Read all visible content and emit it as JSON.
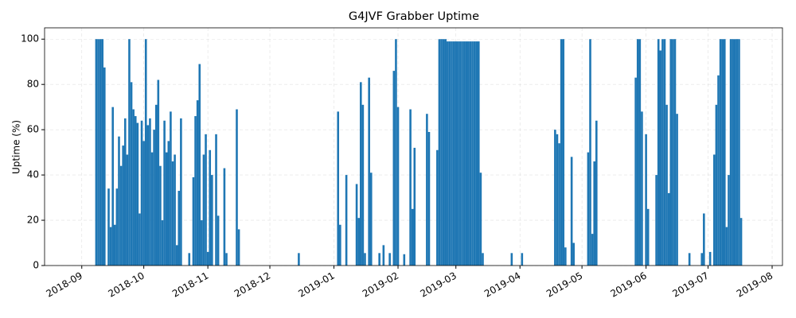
{
  "chart_data": {
    "type": "bar",
    "title": "G4JVF Grabber Uptime",
    "y_label": "Uptime (%)",
    "color": "#1f77b4",
    "grid": true,
    "x": [
      "2018-09-08",
      "2018-09-09",
      "2018-09-10",
      "2018-09-11",
      "2018-09-12",
      "2018-09-14",
      "2018-09-15",
      "2018-09-16",
      "2018-09-17",
      "2018-09-18",
      "2018-09-19",
      "2018-09-20",
      "2018-09-21",
      "2018-09-22",
      "2018-09-23",
      "2018-09-24",
      "2018-09-25",
      "2018-09-26",
      "2018-09-27",
      "2018-09-28",
      "2018-09-29",
      "2018-09-30",
      "2018-10-01",
      "2018-10-02",
      "2018-10-03",
      "2018-10-04",
      "2018-10-05",
      "2018-10-06",
      "2018-10-07",
      "2018-10-08",
      "2018-10-09",
      "2018-10-10",
      "2018-10-11",
      "2018-10-12",
      "2018-10-13",
      "2018-10-14",
      "2018-10-15",
      "2018-10-16",
      "2018-10-17",
      "2018-10-18",
      "2018-10-19",
      "2018-10-23",
      "2018-10-25",
      "2018-10-26",
      "2018-10-27",
      "2018-10-28",
      "2018-10-29",
      "2018-10-30",
      "2018-10-31",
      "2018-11-01",
      "2018-11-02",
      "2018-11-03",
      "2018-11-05",
      "2018-11-06",
      "2018-11-09",
      "2018-11-10",
      "2018-11-15",
      "2018-11-16",
      "2018-12-15",
      "2019-01-03",
      "2019-01-04",
      "2019-01-07",
      "2019-01-12",
      "2019-01-13",
      "2019-01-14",
      "2019-01-15",
      "2019-01-16",
      "2019-01-18",
      "2019-01-19",
      "2019-01-23",
      "2019-01-25",
      "2019-01-28",
      "2019-01-30",
      "2019-01-31",
      "2019-02-01",
      "2019-02-04",
      "2019-02-07",
      "2019-02-08",
      "2019-02-09",
      "2019-02-15",
      "2019-02-16",
      "2019-02-20",
      "2019-02-21",
      "2019-02-22",
      "2019-02-23",
      "2019-02-24",
      "2019-02-25",
      "2019-02-26",
      "2019-02-27",
      "2019-02-28",
      "2019-03-01",
      "2019-03-02",
      "2019-03-03",
      "2019-03-04",
      "2019-03-05",
      "2019-03-06",
      "2019-03-07",
      "2019-03-08",
      "2019-03-09",
      "2019-03-10",
      "2019-03-11",
      "2019-03-12",
      "2019-03-13",
      "2019-03-14",
      "2019-03-28",
      "2019-04-02",
      "2019-04-18",
      "2019-04-19",
      "2019-04-20",
      "2019-04-21",
      "2019-04-22",
      "2019-04-23",
      "2019-04-26",
      "2019-04-27",
      "2019-05-04",
      "2019-05-05",
      "2019-05-06",
      "2019-05-07",
      "2019-05-08",
      "2019-05-27",
      "2019-05-28",
      "2019-05-29",
      "2019-05-30",
      "2019-06-01",
      "2019-06-02",
      "2019-06-06",
      "2019-06-07",
      "2019-06-08",
      "2019-06-09",
      "2019-06-10",
      "2019-06-11",
      "2019-06-12",
      "2019-06-13",
      "2019-06-14",
      "2019-06-15",
      "2019-06-16",
      "2019-06-22",
      "2019-06-28",
      "2019-06-29",
      "2019-07-02",
      "2019-07-04",
      "2019-07-05",
      "2019-07-06",
      "2019-07-07",
      "2019-07-08",
      "2019-07-09",
      "2019-07-10",
      "2019-07-11",
      "2019-07-12",
      "2019-07-13",
      "2019-07-14",
      "2019-07-15",
      "2019-07-16",
      "2019-07-17"
    ],
    "values": [
      100,
      100,
      100,
      100,
      87.5,
      34,
      17,
      70,
      18,
      34,
      57,
      44,
      53,
      65,
      49,
      100,
      81,
      69,
      66,
      63,
      23,
      64,
      55,
      100,
      62,
      65,
      50,
      60,
      71,
      82,
      44,
      20,
      64,
      50,
      55,
      68,
      46,
      49,
      9,
      33,
      65,
      5.5,
      39,
      66,
      73,
      89,
      20,
      49,
      58,
      6,
      51,
      40,
      58,
      22,
      43,
      5.5,
      69,
      16,
      5.5,
      68,
      18,
      40,
      36,
      21,
      81,
      71,
      5.5,
      83,
      41,
      5.5,
      9,
      5.5,
      86,
      100,
      70,
      5,
      69,
      25,
      52,
      67,
      59,
      51,
      100,
      100,
      100,
      100,
      99,
      99,
      99,
      99,
      99,
      99,
      99,
      99,
      99,
      99,
      99,
      99,
      99,
      99,
      99,
      99,
      41,
      5.5,
      5.5,
      5.5,
      60,
      58,
      54,
      100,
      100,
      8,
      48,
      10,
      50,
      100,
      14,
      46,
      64,
      83,
      100,
      100,
      68,
      58,
      25,
      40,
      100,
      95,
      100,
      100,
      71,
      32,
      100,
      100,
      100,
      67,
      5.5,
      5.5,
      23,
      6,
      49,
      71,
      84,
      100,
      100,
      100,
      17,
      40,
      100,
      100,
      100,
      100,
      100,
      21
    ],
    "xlim": [
      "2018-08-14",
      "2019-08-06"
    ],
    "xticks": [
      {
        "value": "2018-09-01",
        "label": "2018-09"
      },
      {
        "value": "2018-10-01",
        "label": "2018-10"
      },
      {
        "value": "2018-11-01",
        "label": "2018-11"
      },
      {
        "value": "2018-12-01",
        "label": "2018-12"
      },
      {
        "value": "2019-01-01",
        "label": "2019-01"
      },
      {
        "value": "2019-02-01",
        "label": "2019-02"
      },
      {
        "value": "2019-03-01",
        "label": "2019-03"
      },
      {
        "value": "2019-04-01",
        "label": "2019-04"
      },
      {
        "value": "2019-05-01",
        "label": "2019-05"
      },
      {
        "value": "2019-06-01",
        "label": "2019-06"
      },
      {
        "value": "2019-07-01",
        "label": "2019-07"
      },
      {
        "value": "2019-08-01",
        "label": "2019-08"
      }
    ],
    "ylim": [
      0,
      105
    ],
    "yticks": [
      0,
      20,
      40,
      60,
      80,
      100
    ]
  }
}
